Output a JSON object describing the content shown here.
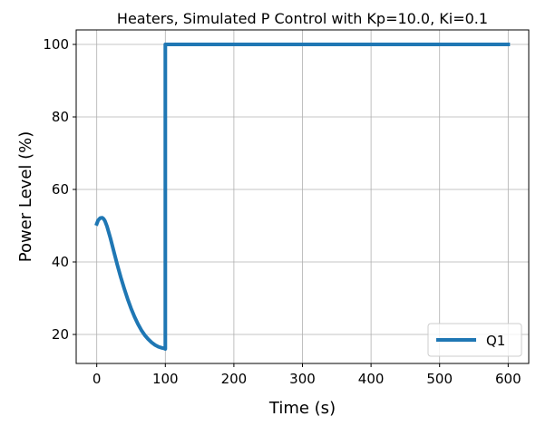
{
  "chart_data": {
    "type": "line",
    "title": "Heaters, Simulated P Control with Kp=10.0, Ki=0.1",
    "xlabel": "Time (s)",
    "ylabel": "Power Level (%)",
    "xlim": [
      -30,
      630
    ],
    "ylim": [
      12,
      104
    ],
    "xticks": [
      0,
      100,
      200,
      300,
      400,
      500,
      600
    ],
    "yticks": [
      20,
      40,
      60,
      80,
      100
    ],
    "grid": true,
    "legend_position": "bottom-right",
    "series": [
      {
        "name": "Q1",
        "color": "#1f77b4",
        "x": [
          0,
          2,
          5,
          8,
          10,
          12,
          15,
          20,
          25,
          30,
          35,
          40,
          45,
          50,
          55,
          60,
          65,
          70,
          75,
          80,
          85,
          90,
          95,
          99,
          100,
          100,
          150,
          200,
          250,
          300,
          350,
          400,
          450,
          500,
          550,
          600
        ],
        "y": [
          50.5,
          51.5,
          52.1,
          52.2,
          51.9,
          51.3,
          49.8,
          46.5,
          42.8,
          39.2,
          35.8,
          32.7,
          29.8,
          27.2,
          24.9,
          22.9,
          21.2,
          19.8,
          18.7,
          17.8,
          17.1,
          16.6,
          16.3,
          16.1,
          16.0,
          100,
          100,
          100,
          100,
          100,
          100,
          100,
          100,
          100,
          100,
          100
        ]
      }
    ]
  }
}
